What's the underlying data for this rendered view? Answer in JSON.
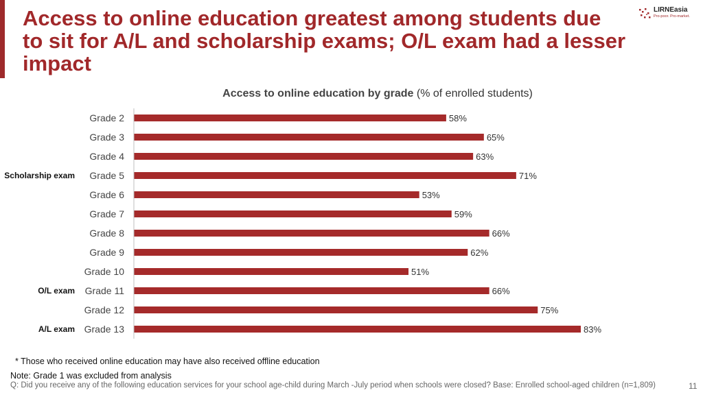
{
  "slide": {
    "title": "Access to online education greatest among students due to sit for A/L and scholarship exams; O/L exam had a lesser impact",
    "page_number": "11"
  },
  "logo": {
    "name": "LIRNEasia",
    "tagline": "Pro-poor. Pro-market."
  },
  "chart_title": {
    "bold": "Access to online education by grade",
    "rest": " (% of enrolled students)"
  },
  "chart_data": {
    "type": "bar",
    "orientation": "horizontal",
    "title": "Access to online education by grade (% of enrolled students)",
    "categories": [
      "Grade 2",
      "Grade 3",
      "Grade 4",
      "Grade 5",
      "Grade 6",
      "Grade 7",
      "Grade 8",
      "Grade 9",
      "Grade 10",
      "Grade 11",
      "Grade 12",
      "Grade 13"
    ],
    "values": [
      58,
      65,
      63,
      71,
      53,
      59,
      66,
      62,
      51,
      66,
      75,
      83
    ],
    "value_labels": [
      "58%",
      "65%",
      "63%",
      "71%",
      "53%",
      "59%",
      "66%",
      "62%",
      "51%",
      "66%",
      "75%",
      "83%"
    ],
    "group_labels": [
      {
        "category": "Grade 5",
        "label": "Scholarship exam"
      },
      {
        "category": "Grade 11",
        "label": "O/L exam"
      },
      {
        "category": "Grade 13",
        "label": "A/L exam"
      }
    ],
    "xlim": [
      0,
      83
    ],
    "bar_color": "#a52a2a",
    "grid": false,
    "legend": "none"
  },
  "notes": {
    "footnote": "* Those who received online education may have also received offline education",
    "note": "Note: Grade 1 was excluded from analysis",
    "question": "Q: Did you receive any of the following education services for your school age-child during March -July period when schools were closed?   Base: Enrolled school-aged children (n=1,809)"
  },
  "colors": {
    "accent": "#a1282a",
    "bar": "#a52a2a"
  }
}
